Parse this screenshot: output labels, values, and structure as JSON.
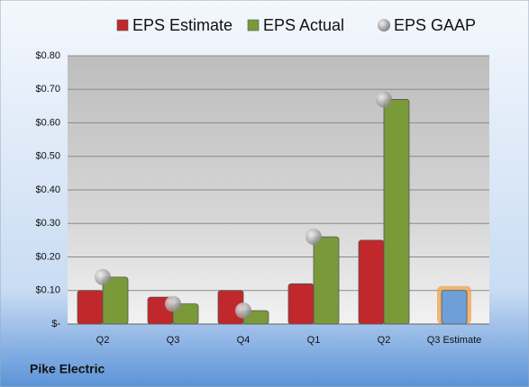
{
  "chart_data": {
    "type": "bar",
    "footer": "Pike Electric",
    "categories": [
      "Q2",
      "Q3",
      "Q4",
      "Q1",
      "Q2",
      "Q3 Estimate"
    ],
    "series": [
      {
        "name": "EPS Estimate",
        "color": "#c0282b",
        "forecast_color": "#6f9fd8",
        "values": [
          0.1,
          0.08,
          0.1,
          0.12,
          0.25,
          0.1
        ]
      },
      {
        "name": "EPS Actual",
        "color": "#7a9a3a",
        "values": [
          0.14,
          0.06,
          0.04,
          0.26,
          0.67,
          null
        ]
      },
      {
        "name": "EPS GAAP",
        "color": "#a0a0a0",
        "marker": "circle",
        "values": [
          0.14,
          0.06,
          0.04,
          0.26,
          0.67,
          null
        ]
      }
    ],
    "ylim": [
      0,
      0.8
    ],
    "yticks": [
      {
        "value": 0,
        "label": "$-"
      },
      {
        "value": 0.1,
        "label": "$0.10"
      },
      {
        "value": 0.2,
        "label": "$0.20"
      },
      {
        "value": 0.3,
        "label": "$0.30"
      },
      {
        "value": 0.4,
        "label": "$0.40"
      },
      {
        "value": 0.5,
        "label": "$0.50"
      },
      {
        "value": 0.6,
        "label": "$0.60"
      },
      {
        "value": 0.7,
        "label": "$0.70"
      },
      {
        "value": 0.8,
        "label": "$0.80"
      }
    ],
    "grid": true,
    "legend": "top"
  }
}
